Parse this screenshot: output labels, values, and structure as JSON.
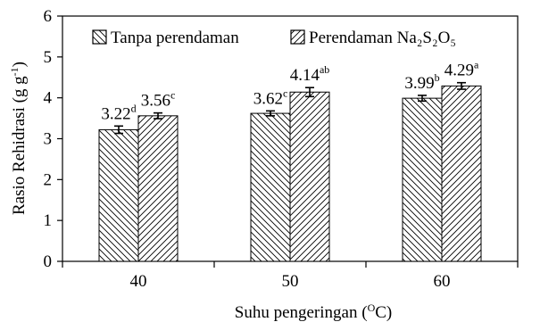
{
  "chart_data": {
    "type": "bar",
    "categories": [
      "40",
      "50",
      "60"
    ],
    "series": [
      {
        "name": "Tanpa perendaman",
        "values": [
          3.22,
          3.62,
          3.99
        ],
        "errors": [
          0.09,
          0.06,
          0.07
        ],
        "labels": [
          "3.22",
          "3.62",
          "3.99"
        ],
        "letters": [
          "d",
          "c",
          "b"
        ],
        "pattern": "backslash-hatch"
      },
      {
        "name": "Perendaman Na₂S₂O₅",
        "values": [
          3.56,
          4.14,
          4.29
        ],
        "errors": [
          0.07,
          0.11,
          0.08
        ],
        "labels": [
          "3.56",
          "4.14",
          "4.29"
        ],
        "letters": [
          "c",
          "ab",
          "a"
        ],
        "pattern": "slash-hatch"
      }
    ],
    "xlabel": "Suhu pengeringan (°C)",
    "xlabel_parts": {
      "before": "Suhu pengeringan (",
      "sup": "O",
      "after": "C)"
    },
    "ylabel": "Rasio Rehidrasi (g g⁻¹)",
    "ylabel_parts": {
      "before": "Rasio Rehidrasi (g g",
      "sup": "-1",
      "after": ")"
    },
    "ylim": [
      0,
      6
    ],
    "yticks": [
      0,
      1,
      2,
      3,
      4,
      5,
      6
    ],
    "grid": false,
    "legend_position": "top"
  }
}
